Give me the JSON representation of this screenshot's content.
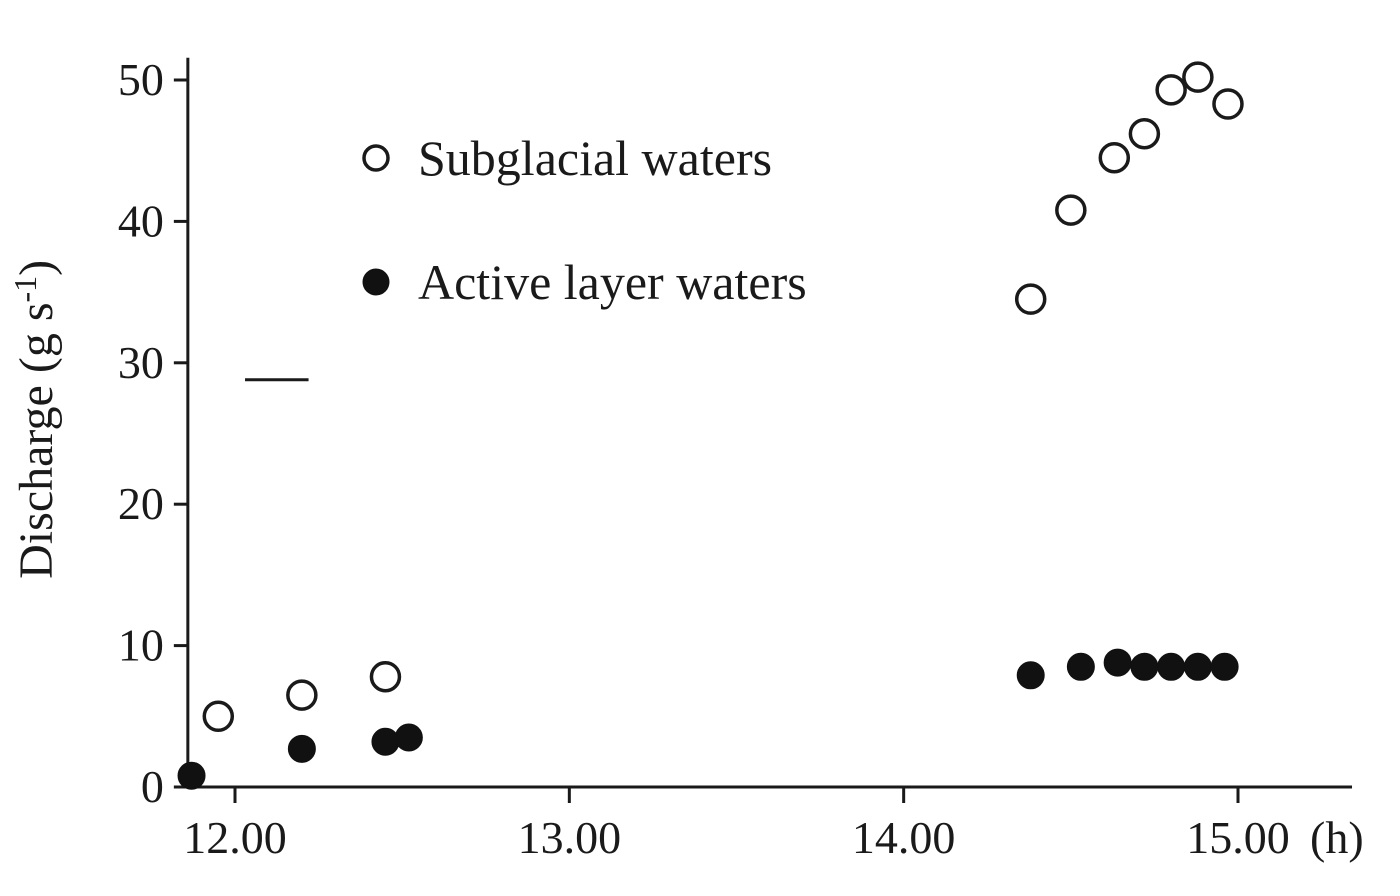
{
  "chart_data": {
    "type": "scatter",
    "title": "",
    "xlabel": "(h)",
    "ylabel": "Discharge (g s",
    "ylabel_sup": "-1",
    "ylabel_close": ")",
    "xlim": [
      11.85,
      15.35
    ],
    "ylim": [
      0,
      52
    ],
    "x_ticks": [
      12,
      13,
      14,
      15
    ],
    "x_tick_labels": [
      "12.00",
      "13.00",
      "14.00",
      "15.00"
    ],
    "y_ticks": [
      0,
      10,
      20,
      30,
      40,
      50
    ],
    "y_tick_labels": [
      "0",
      "10",
      "20",
      "30",
      "40",
      "50"
    ],
    "grid": false,
    "legend_position": "top-center",
    "series": [
      {
        "name": "Subglacial waters",
        "marker": "open-circle",
        "points": [
          [
            11.95,
            5.0
          ],
          [
            12.2,
            6.5
          ],
          [
            12.45,
            7.8
          ],
          [
            14.38,
            34.5
          ],
          [
            14.5,
            40.8
          ],
          [
            14.63,
            44.5
          ],
          [
            14.72,
            46.2
          ],
          [
            14.8,
            49.3
          ],
          [
            14.88,
            50.2
          ],
          [
            14.97,
            48.3
          ]
        ]
      },
      {
        "name": "Active layer waters",
        "marker": "filled-circle",
        "points": [
          [
            11.87,
            0.8
          ],
          [
            12.2,
            2.7
          ],
          [
            12.45,
            3.2
          ],
          [
            12.52,
            3.5
          ],
          [
            14.38,
            7.9
          ],
          [
            14.53,
            8.5
          ],
          [
            14.64,
            8.8
          ],
          [
            14.72,
            8.5
          ],
          [
            14.8,
            8.5
          ],
          [
            14.88,
            8.5
          ],
          [
            14.96,
            8.5
          ]
        ]
      }
    ],
    "annotations": [
      {
        "type": "dash",
        "x_start": 12.03,
        "x_end": 12.22,
        "y": 28.8
      }
    ]
  }
}
